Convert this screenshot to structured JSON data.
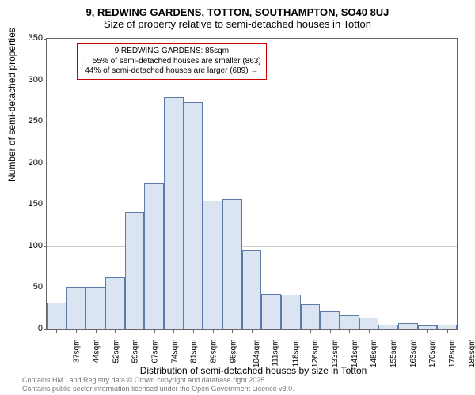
{
  "chart": {
    "type": "histogram",
    "title_main": "9, REDWING GARDENS, TOTTON, SOUTHAMPTON, SO40 8UJ",
    "title_sub": "Size of property relative to semi-detached houses in Totton",
    "y_axis": {
      "label": "Number of semi-detached properties",
      "min": 0,
      "max": 350,
      "tick_step": 50,
      "ticks": [
        0,
        50,
        100,
        150,
        200,
        250,
        300,
        350
      ]
    },
    "x_axis": {
      "label": "Distribution of semi-detached houses by size in Totton",
      "categories": [
        "37sqm",
        "44sqm",
        "52sqm",
        "59sqm",
        "67sqm",
        "74sqm",
        "81sqm",
        "89sqm",
        "96sqm",
        "104sqm",
        "111sqm",
        "118sqm",
        "126sqm",
        "133sqm",
        "141sqm",
        "148sqm",
        "155sqm",
        "163sqm",
        "170sqm",
        "178sqm",
        "185sqm"
      ]
    },
    "values": [
      32,
      51,
      51,
      63,
      142,
      176,
      280,
      274,
      155,
      157,
      95,
      43,
      42,
      30,
      22,
      17,
      14,
      6,
      8,
      5,
      6
    ],
    "bar_fill": "#dbe5f1",
    "bar_border": "#5b7ca8",
    "grid_color": "#cccccc",
    "background_color": "#ffffff",
    "reference_line": {
      "position_index": 7,
      "color": "#cc0000"
    },
    "annotation": {
      "line1": "9 REDWING GARDENS: 85sqm",
      "line2": "← 55% of semi-detached houses are smaller (863)",
      "line3": "44% of semi-detached houses are larger (689) →",
      "border_color": "#cc0000"
    },
    "attribution": {
      "line1": "Contains HM Land Registry data © Crown copyright and database right 2025.",
      "line2": "Contains public sector information licensed under the Open Government Licence v3.0."
    },
    "title_fontsize": 13,
    "label_fontsize": 12,
    "tick_fontsize": 11,
    "annotation_fontsize": 10
  }
}
